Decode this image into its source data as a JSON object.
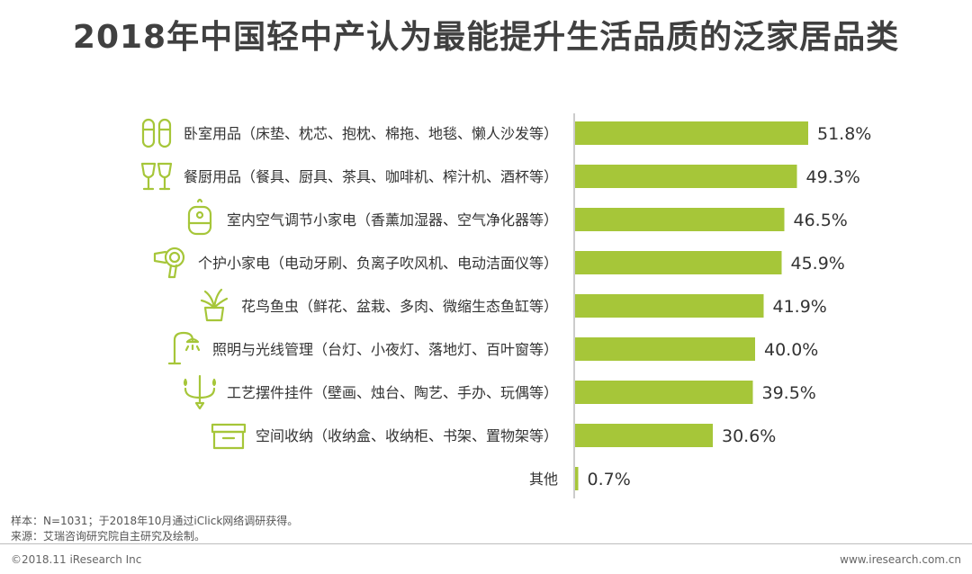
{
  "title": "2018年中国轻中产认为最能提升生活品质的泛家居品类",
  "chart_data": {
    "type": "bar",
    "orientation": "horizontal",
    "categories": [
      "卧室用品（床垫、枕芯、抱枕、棉拖、地毯、懒人沙发等）",
      "餐厨用品（餐具、厨具、茶具、咖啡机、榨汁机、酒杯等）",
      "室内空气调节小家电（香薰加湿器、空气净化器等）",
      "个护小家电（电动牙刷、负离子吹风机、电动洁面仪等）",
      "花鸟鱼虫（鲜花、盆栽、多肉、微缩生态鱼缸等）",
      "照明与光线管理（台灯、小夜灯、落地灯、百叶窗等）",
      "工艺摆件挂件（壁画、烛台、陶艺、手办、玩偶等）",
      "空间收纳（收纳盒、收纳柜、书架、置物架等）",
      "其他"
    ],
    "values": [
      51.8,
      49.3,
      46.5,
      45.9,
      41.9,
      40.0,
      39.5,
      30.6,
      0.7
    ],
    "value_labels": [
      "51.8%",
      "49.3%",
      "46.5%",
      "45.9%",
      "41.9%",
      "40.0%",
      "39.5%",
      "30.6%",
      "0.7%"
    ],
    "icons": [
      "slippers-icon",
      "glasses-icon",
      "humidifier-icon",
      "hair-dryer-icon",
      "plant-icon",
      "lamp-icon",
      "chandelier-icon",
      "storage-box-icon",
      ""
    ],
    "xlim": [
      0,
      60
    ],
    "bar_color": "#a6c639",
    "icon_color": "#a6c639",
    "grid": false
  },
  "footer": {
    "note_sample": "样本：N=1031；于2018年10月通过iClick网络调研获得。",
    "note_source": "来源：艾瑞咨询研究院自主研究及绘制。",
    "copyright": "©2018.11 iResearch Inc",
    "website": "www.iresearch.com.cn"
  }
}
